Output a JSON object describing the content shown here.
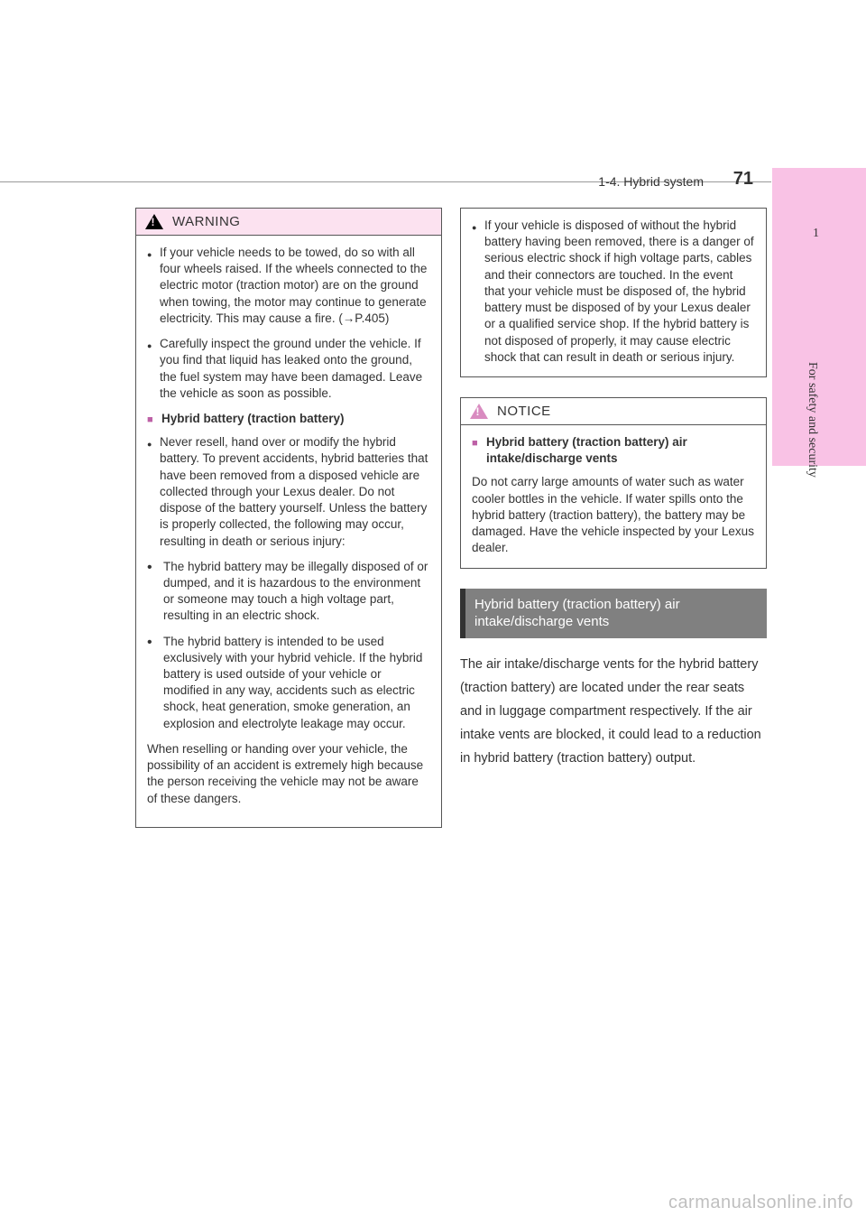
{
  "header": {
    "section": "1-4. Hybrid system",
    "page_number": "71"
  },
  "side_tab": {
    "number": "1",
    "label": "For safety and security"
  },
  "warning": {
    "title": "WARNING",
    "items": {
      "towed": "If your vehicle needs to be towed, do so with all four wheels raised. If the wheels connected to the electric motor (traction motor) are on the ground when towing, the motor may continue to generate electricity. This may cause a fire. (→P.405)",
      "inspect": "Carefully inspect the ground under the vehicle. If you find that liquid has leaked onto the ground, the fuel system may have been damaged. Leave the vehicle as soon as possible."
    },
    "heading1": "Hybrid battery (traction battery)",
    "resell": "Never resell, hand over or modify the hybrid battery. To prevent accidents, hybrid batteries that have been removed from a disposed vehicle are collected through your Lexus dealer. Do not dispose of the battery yourself. Unless the battery is properly collected, the following may occur, resulting in death or serious injury:",
    "sub1": "The hybrid battery may be illegally disposed of or dumped, and it is hazardous to the environment or someone may touch a high voltage part, resulting in an electric shock.",
    "sub2": "The hybrid battery is intended to be used exclusively with your hybrid vehicle. If the hybrid battery is used outside of your vehicle or modified in any way, accidents such as electric shock, heat generation, smoke generation, an explosion and electrolyte leakage may occur.",
    "tail": "When reselling or handing over your vehicle, the possibility of an accident is extremely high because the person receiving the vehicle may not be aware of these dangers.",
    "disposed": "If your vehicle is disposed of without the hybrid battery having been removed, there is a danger of serious electric shock if high voltage parts, cables and their connectors are touched. In the event that your vehicle must be disposed of, the hybrid battery must be disposed of by your Lexus dealer or a qualified service shop. If the hybrid battery is not disposed of properly, it may cause electric shock that can result in death or serious injury."
  },
  "notice": {
    "title": "NOTICE",
    "heading": "Hybrid battery (traction battery) air intake/discharge vents",
    "body": "Do not carry large amounts of water such as water cooler bottles in the vehicle. If water spills onto the hybrid battery (traction battery), the battery may be damaged. Have the vehicle inspected by your Lexus dealer."
  },
  "section": {
    "title": "Hybrid battery (traction battery) air intake/discharge vents",
    "body": "The air intake/discharge vents for the hybrid battery (traction battery) are located under the rear seats and in luggage compartment respectively. If the air intake vents are blocked, it could lead to a reduction in hybrid battery (traction battery) output."
  },
  "watermark": "carmanualsonline.info",
  "colors": {
    "tab_bg": "#f9c2e5",
    "warning_bg": "#fce2f0",
    "square_marker": "#bd60a6",
    "notice_icon": "#d98bc0",
    "section_bg": "#808080",
    "watermark_color": "#bfbfbf"
  }
}
